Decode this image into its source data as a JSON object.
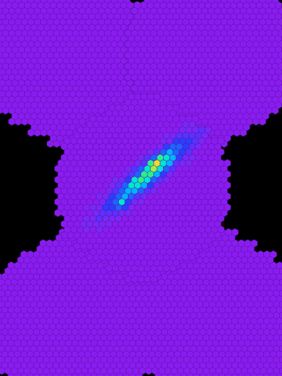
{
  "chart_data": {
    "type": "heatmap",
    "title": "",
    "xlabel": "",
    "ylabel": "",
    "grid": false,
    "legend": "none",
    "cell_shape": "hexagon",
    "background_color": "#000000",
    "cell_border_color": "#5a14a6",
    "colormap": [
      "#8a1cf0",
      "#7a28f5",
      "#5a32ff",
      "#2d3cff",
      "#1e64ff",
      "#00b4ff",
      "#00e6d2",
      "#28f08c",
      "#a0f03c",
      "#f0dc28",
      "#ff5014"
    ],
    "x_range": [
      -21,
      21
    ],
    "y_range": [
      -21,
      21
    ],
    "camera_row_halfwidths": [
      2,
      5,
      8,
      10,
      12,
      12,
      13,
      13,
      13,
      13,
      13,
      12,
      12,
      10,
      8,
      5,
      2
    ],
    "camera_row_spacing": 2,
    "peak_value": 1.0,
    "hotspots": [
      {
        "x": 2.2,
        "y": 4.2,
        "value": 0.93
      },
      {
        "x": 1.8,
        "y": 3.4,
        "value": 0.85
      },
      {
        "x": 3.0,
        "y": 5.0,
        "value": 0.8
      },
      {
        "x": 0.8,
        "y": 2.6,
        "value": 0.78
      },
      {
        "x": -3.2,
        "y": -2.6,
        "value": 0.6
      }
    ],
    "neighbor_cameras": [
      {
        "name": "top-left",
        "cx": -12.2,
        "cy": 24.5
      },
      {
        "name": "top-right",
        "cx": 11.0,
        "cy": 24.5
      },
      {
        "name": "bottom-left",
        "cx": -10.8,
        "cy": -24.5
      },
      {
        "name": "bottom-right",
        "cx": 12.2,
        "cy": -24.5
      }
    ]
  }
}
